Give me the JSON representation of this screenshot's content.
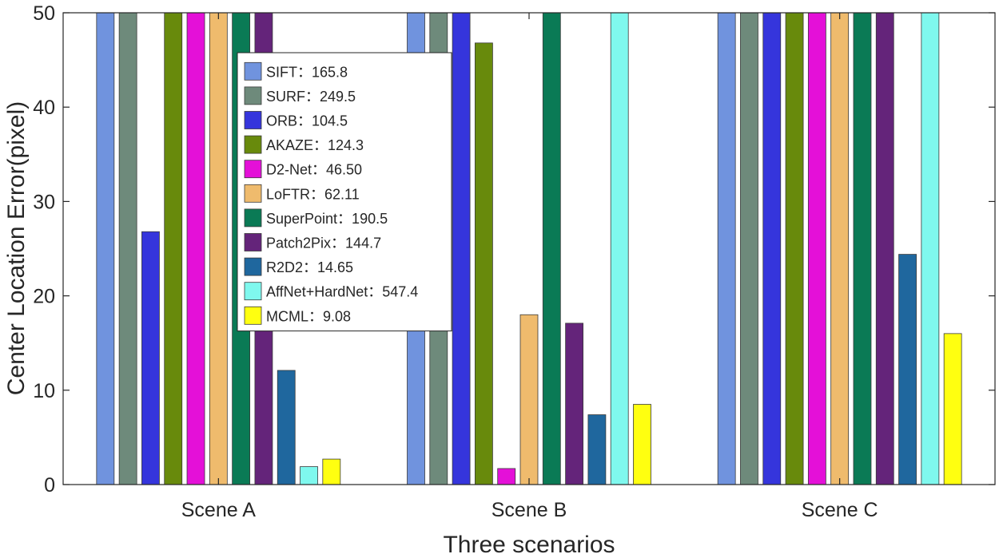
{
  "chart_data": {
    "type": "bar",
    "title": "",
    "xlabel": "Three scenarios",
    "ylabel": "Center Location Error(pixel)",
    "ylim": [
      0,
      50
    ],
    "yticks": [
      0,
      10,
      20,
      30,
      40,
      50
    ],
    "categories": [
      "Scene A",
      "Scene B",
      "Scene C"
    ],
    "legend_position": "top-left-inside",
    "series": [
      {
        "name": "SIFT",
        "legend_value": "165.8",
        "color": "#7093DE",
        "values": [
          50,
          50,
          50
        ]
      },
      {
        "name": "SURF",
        "legend_value": "249.5",
        "color": "#6E8A7B",
        "values": [
          50,
          50,
          50
        ]
      },
      {
        "name": "ORB",
        "legend_value": "104.5",
        "color": "#3535DC",
        "values": [
          26.8,
          50,
          50
        ]
      },
      {
        "name": "AKAZE",
        "legend_value": "124.3",
        "color": "#688A0C",
        "values": [
          50,
          46.8,
          50
        ]
      },
      {
        "name": "D2-Net",
        "legend_value": "46.50",
        "color": "#E410D8",
        "values": [
          50,
          1.7,
          50
        ]
      },
      {
        "name": "LoFTR",
        "legend_value": "62.11",
        "color": "#EFBB6D",
        "values": [
          50,
          18.0,
          50
        ]
      },
      {
        "name": "SuperPoint",
        "legend_value": "190.5",
        "color": "#0A7A55",
        "values": [
          50,
          50,
          50
        ]
      },
      {
        "name": "Patch2Pix",
        "legend_value": "144.7",
        "color": "#64247A",
        "values": [
          50,
          17.1,
          50
        ]
      },
      {
        "name": "R2D2",
        "legend_value": "14.65",
        "color": "#1F679E",
        "values": [
          12.1,
          7.4,
          24.4
        ]
      },
      {
        "name": "AffNet+HardNet",
        "legend_value": "547.4",
        "color": "#7FF8EE",
        "values": [
          1.9,
          50,
          50
        ]
      },
      {
        "name": "MCML",
        "legend_value": "9.08",
        "color": "#FFFF10",
        "values": [
          2.7,
          8.5,
          16.0
        ]
      }
    ],
    "legend_separator": "："
  }
}
